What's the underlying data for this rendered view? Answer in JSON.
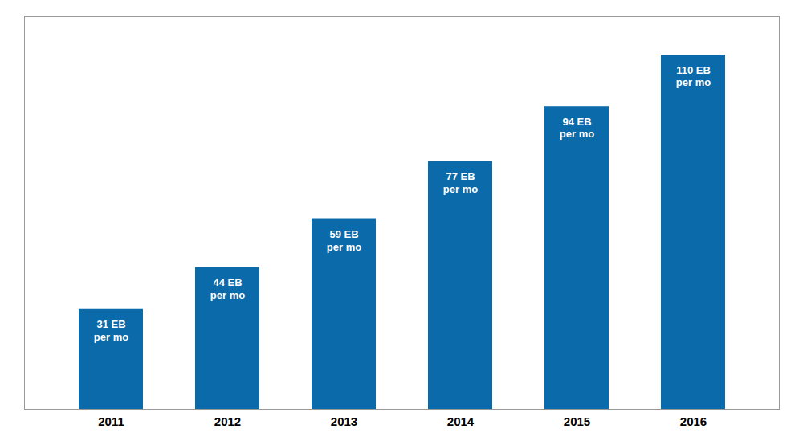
{
  "chart_data": {
    "type": "bar",
    "categories": [
      "2011",
      "2012",
      "2013",
      "2014",
      "2015",
      "2016"
    ],
    "values": [
      31,
      44,
      59,
      77,
      94,
      110
    ],
    "value_labels": [
      "31 EB\nper mo",
      "44 EB\nper mo",
      "59 EB\nper mo",
      "77 EB\nper mo",
      "94 EB\nper mo",
      "110 EB\nper mo"
    ],
    "data_labels": true,
    "color": "#0a6aaa",
    "ylim": [
      0,
      122
    ],
    "tick_labels": "x",
    "grid": false
  }
}
